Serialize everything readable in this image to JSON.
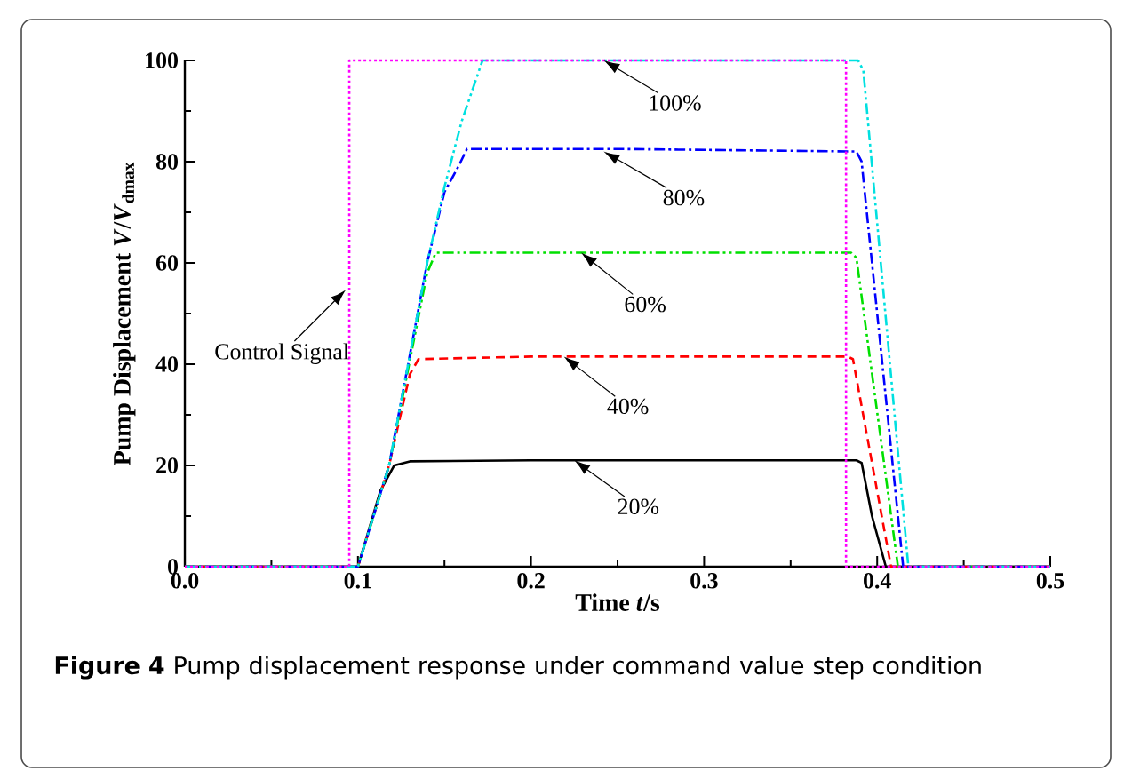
{
  "chart_data": {
    "type": "line",
    "xlabel": "Time *t*/s",
    "ylabel": "Pump Displacement *V*/*V*$_{dmax}$",
    "xlim": [
      0,
      0.5
    ],
    "ylim": [
      0,
      100
    ],
    "xticks": [
      {
        "value": 0,
        "label": "0.0"
      },
      0.1,
      0.2,
      0.3,
      0.4,
      0.5
    ],
    "yticks": [
      0,
      20,
      40,
      60,
      80,
      100
    ],
    "grid": false,
    "marker": "none",
    "series": [
      {
        "color": "#000000",
        "line_style": "solid",
        "x": [
          0,
          0.1,
          0.113,
          0.121,
          0.13,
          0.2,
          0.3,
          0.388,
          0.391,
          0.397,
          0.405,
          0.5
        ],
        "values": [
          0,
          0,
          15,
          20,
          20.8,
          21,
          21,
          21,
          20.5,
          10,
          0,
          0
        ]
      },
      {
        "color": "#ff0000",
        "line_style": "dashed",
        "x": [
          0,
          0.1,
          0.118,
          0.13,
          0.135,
          0.2,
          0.3,
          0.383,
          0.386,
          0.408,
          0.5
        ],
        "values": [
          0,
          0,
          20,
          38,
          41,
          41.5,
          41.5,
          41.5,
          41,
          0,
          0
        ]
      },
      {
        "color": "#00e000",
        "line_style": "dashdotdot",
        "x": [
          0,
          0.1,
          0.118,
          0.14,
          0.145,
          0.25,
          0.385,
          0.388,
          0.412,
          0.5
        ],
        "values": [
          0,
          0,
          20,
          58,
          62,
          62,
          62,
          61,
          0,
          0
        ]
      },
      {
        "color": "#0000ff",
        "line_style": "dashdot",
        "x": [
          0,
          0.1,
          0.118,
          0.14,
          0.15,
          0.158,
          0.163,
          0.25,
          0.388,
          0.391,
          0.415,
          0.5
        ],
        "values": [
          0,
          0,
          20,
          60,
          74,
          79,
          82.5,
          82.5,
          82,
          80,
          0,
          0
        ]
      },
      {
        "color": "#00e0e0",
        "line_style": "dashdotdot",
        "x": [
          0,
          0.1,
          0.118,
          0.14,
          0.15,
          0.16,
          0.172,
          0.25,
          0.389,
          0.392,
          0.418,
          0.5
        ],
        "values": [
          0,
          0,
          20,
          60,
          75,
          88,
          100,
          100,
          100,
          98,
          0,
          0
        ]
      },
      {
        "color": "#ff00ff",
        "line_style": "dotted",
        "x": [
          0,
          0.095,
          0.095,
          0.382,
          0.382,
          0.5
        ],
        "values": [
          0,
          0,
          100,
          100,
          0,
          0
        ]
      }
    ],
    "annotations": [
      {
        "text": "100%",
        "x": 0.242,
        "y": 100
      },
      {
        "text": "80%",
        "x": 0.242,
        "y": 82
      },
      {
        "text": "60%",
        "x": 0.229,
        "y": 62
      },
      {
        "text": "40%",
        "x": 0.219,
        "y": 41.5
      },
      {
        "text": "20%",
        "x": 0.225,
        "y": 21
      },
      {
        "text": "Control Signal",
        "x": 0.093,
        "y": 54.7
      },
      "**Figure 4** Pump displacement response under command value step condition"
    ]
  }
}
